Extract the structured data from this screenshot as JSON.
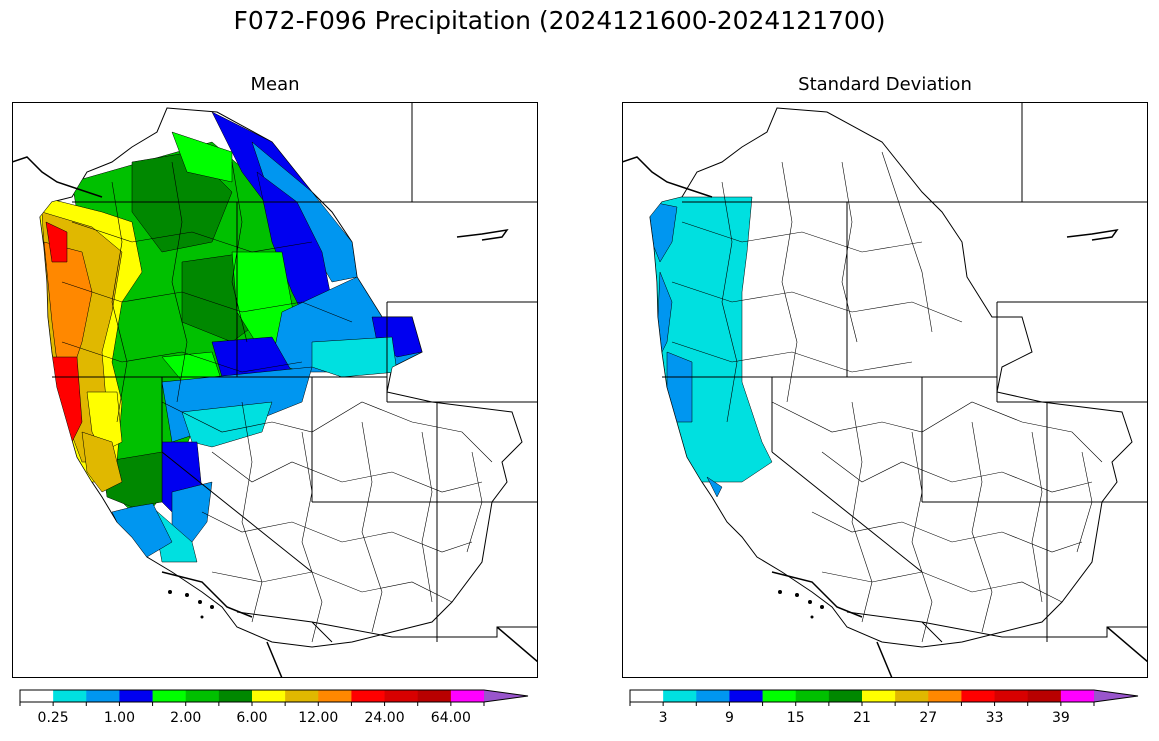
{
  "title": "F072-F096 Precipitation (2024121600-2024121700)",
  "panels": [
    {
      "title": "Mean",
      "colorbar": {
        "colors": [
          "#ffffff",
          "#00e0e0",
          "#0096f0",
          "#0000f0",
          "#00ff00",
          "#00c000",
          "#008800",
          "#ffff00",
          "#e0b800",
          "#ff8800",
          "#ff0000",
          "#d80000",
          "#b80000",
          "#ff00ff",
          "#9955cc"
        ],
        "tick_labels": [
          "0.25",
          "1.00",
          "2.00",
          "6.00",
          "12.00",
          "24.00",
          "64.00"
        ]
      }
    },
    {
      "title": "Standard Deviation",
      "colorbar": {
        "colors": [
          "#ffffff",
          "#00e0e0",
          "#0096f0",
          "#0000f0",
          "#00ff00",
          "#00c000",
          "#008800",
          "#ffff00",
          "#e0b800",
          "#ff8800",
          "#ff0000",
          "#d80000",
          "#b80000",
          "#ff00ff",
          "#9955cc"
        ],
        "tick_labels": [
          "3",
          "9",
          "15",
          "21",
          "27",
          "33",
          "39"
        ]
      }
    }
  ]
}
